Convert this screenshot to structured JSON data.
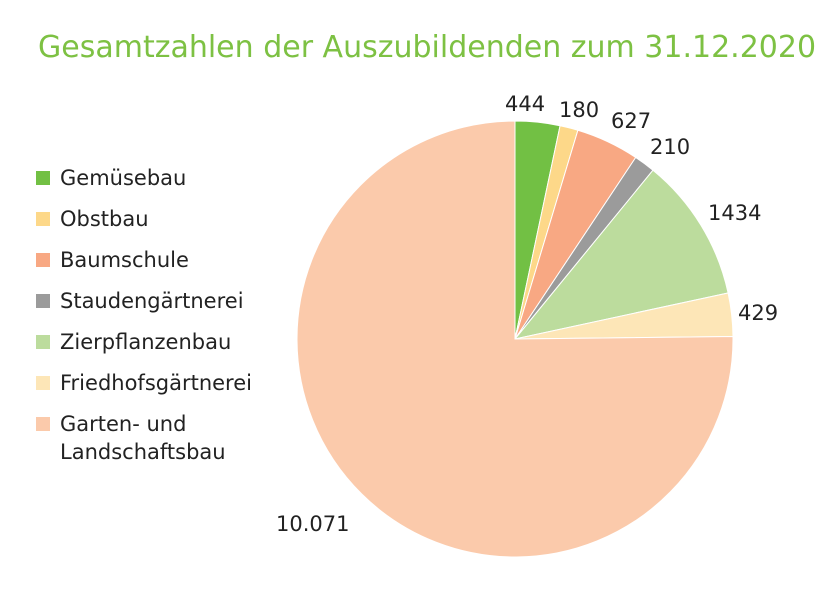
{
  "chart_data": {
    "type": "pie",
    "title": "Gesamtzahlen der Auszubildenden zum 31.12.2020",
    "legend_position": "left",
    "slices": [
      {
        "name": "Gemüsebau",
        "value": 444,
        "label": "444",
        "color": "#72c044"
      },
      {
        "name": "Obstbau",
        "value": 180,
        "label": "180",
        "color": "#fdd889"
      },
      {
        "name": "Baumschule",
        "value": 627,
        "label": "627",
        "color": "#f8a883"
      },
      {
        "name": "Staudengärtnerei",
        "value": 210,
        "label": "210",
        "color": "#9b9b9b"
      },
      {
        "name": "Zierpflanzenbau",
        "value": 1434,
        "label": "1434",
        "color": "#bcdc9d"
      },
      {
        "name": "Friedhofsgärtnerei",
        "value": 429,
        "label": "429",
        "color": "#fde6b7"
      },
      {
        "name": "Garten- und Landschaftsbau",
        "value": 10071,
        "label": "10.071",
        "color": "#fbcaab"
      }
    ]
  }
}
